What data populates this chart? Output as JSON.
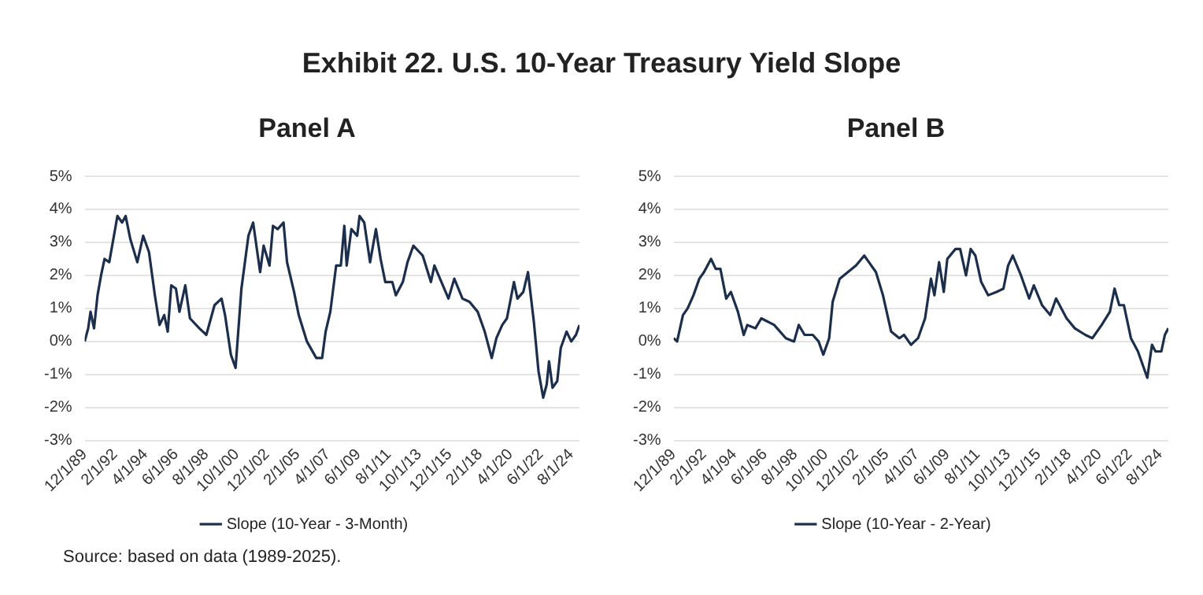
{
  "chart_data": [
    {
      "type": "line",
      "title": "Exhibit 22. U.S. 10-Year Treasury Yield Slope",
      "subtitle": "Panel A",
      "legend": "bottom",
      "grid": "y",
      "marker": "none",
      "line_style": "solid",
      "xlim": [
        "1989-12",
        "2025-03"
      ],
      "xticks": [
        {
          "value": "1989-12",
          "label": "12/1/89"
        },
        {
          "value": "1992-02",
          "label": "2/1/92"
        },
        {
          "value": "1994-04",
          "label": "4/1/94"
        },
        {
          "value": "1996-06",
          "label": "6/1/96"
        },
        {
          "value": "1998-08",
          "label": "8/1/98"
        },
        {
          "value": "2000-10",
          "label": "10/1/00"
        },
        {
          "value": "2002-12",
          "label": "12/1/02"
        },
        {
          "value": "2005-02",
          "label": "2/1/05"
        },
        {
          "value": "2007-04",
          "label": "4/1/07"
        },
        {
          "value": "2009-06",
          "label": "6/1/09"
        },
        {
          "value": "2011-08",
          "label": "8/1/11"
        },
        {
          "value": "2013-10",
          "label": "10/1/13"
        },
        {
          "value": "2015-12",
          "label": "12/1/15"
        },
        {
          "value": "2018-02",
          "label": "2/1/18"
        },
        {
          "value": "2020-04",
          "label": "4/1/20"
        },
        {
          "value": "2022-06",
          "label": "6/1/22"
        },
        {
          "value": "2024-08",
          "label": "8/1/24"
        }
      ],
      "ylim": [
        -3,
        5
      ],
      "yticks": [
        {
          "value": -3,
          "label": "-3%"
        },
        {
          "value": -2,
          "label": "-2%"
        },
        {
          "value": -1,
          "label": "-1%"
        },
        {
          "value": 0,
          "label": "0%"
        },
        {
          "value": 1,
          "label": "1%"
        },
        {
          "value": 2,
          "label": "2%"
        },
        {
          "value": 3,
          "label": "3%"
        },
        {
          "value": 4,
          "label": "4%"
        },
        {
          "value": 5,
          "label": "5%"
        }
      ],
      "annotations": [
        "Source: based on data (1989-2025)."
      ],
      "series": [
        {
          "name": "Slope (10-Year - 3-Month)",
          "color": "#1b2e4b",
          "x": [
            "1989-12",
            "1990-03",
            "1990-05",
            "1990-08",
            "1990-11",
            "1991-02",
            "1991-05",
            "1991-09",
            "1992-02",
            "1992-04",
            "1992-08",
            "1992-11",
            "1993-03",
            "1993-09",
            "1994-02",
            "1994-07",
            "1994-12",
            "1995-04",
            "1995-08",
            "1995-11",
            "1996-02",
            "1996-06",
            "1996-09",
            "1997-02",
            "1997-06",
            "1998-02",
            "1998-08",
            "1999-03",
            "1999-09",
            "1999-12",
            "2000-05",
            "2000-09",
            "2001-02",
            "2001-08",
            "2001-12",
            "2002-06",
            "2002-09",
            "2003-02",
            "2003-05",
            "2003-09",
            "2004-02",
            "2004-05",
            "2004-11",
            "2005-03",
            "2005-10",
            "2006-06",
            "2006-11",
            "2007-02",
            "2007-06",
            "2007-11",
            "2008-03",
            "2008-06",
            "2008-08",
            "2008-12",
            "2009-05",
            "2009-07",
            "2009-11",
            "2010-04",
            "2010-09",
            "2011-01",
            "2011-05",
            "2011-11",
            "2012-02",
            "2012-08",
            "2012-12",
            "2013-05",
            "2014-01",
            "2014-08",
            "2014-11",
            "2015-05",
            "2015-11",
            "2016-04",
            "2016-11",
            "2017-05",
            "2017-12",
            "2018-06",
            "2018-12",
            "2019-04",
            "2019-09",
            "2020-01",
            "2020-07",
            "2020-10",
            "2021-03",
            "2021-07",
            "2021-12",
            "2022-04",
            "2022-08",
            "2022-11",
            "2023-01",
            "2023-04",
            "2023-08",
            "2023-11",
            "2024-04",
            "2024-08",
            "2024-12",
            "2025-03"
          ],
          "values": [
            0.0,
            0.4,
            0.9,
            0.4,
            1.4,
            2.0,
            2.5,
            2.4,
            3.4,
            3.8,
            3.6,
            3.8,
            3.1,
            2.4,
            3.2,
            2.7,
            1.4,
            0.5,
            0.8,
            0.3,
            1.7,
            1.6,
            0.9,
            1.7,
            0.7,
            0.4,
            0.2,
            1.1,
            1.3,
            0.8,
            -0.4,
            -0.8,
            1.6,
            3.2,
            3.6,
            2.1,
            2.9,
            2.3,
            3.5,
            3.4,
            3.6,
            2.4,
            1.5,
            0.8,
            0.0,
            -0.5,
            -0.5,
            0.3,
            0.9,
            2.3,
            2.3,
            3.5,
            2.3,
            3.4,
            3.2,
            3.8,
            3.6,
            2.4,
            3.4,
            2.5,
            1.8,
            1.8,
            1.4,
            1.8,
            2.4,
            2.9,
            2.6,
            1.8,
            2.3,
            1.8,
            1.3,
            1.9,
            1.3,
            1.2,
            0.9,
            0.3,
            -0.5,
            0.1,
            0.5,
            0.7,
            1.8,
            1.3,
            1.5,
            2.1,
            0.6,
            -0.9,
            -1.7,
            -1.3,
            -0.6,
            -1.4,
            -1.2,
            -0.2,
            0.3,
            0.0,
            0.2,
            0.5
          ]
        }
      ]
    },
    {
      "type": "line",
      "subtitle": "Panel B",
      "legend": "bottom",
      "grid": "y",
      "marker": "none",
      "line_style": "solid",
      "xlim": [
        "1989-12",
        "2025-03"
      ],
      "xticks": [
        {
          "value": "1989-12",
          "label": "12/1/89"
        },
        {
          "value": "1992-02",
          "label": "2/1/92"
        },
        {
          "value": "1994-04",
          "label": "4/1/94"
        },
        {
          "value": "1996-06",
          "label": "6/1/96"
        },
        {
          "value": "1998-08",
          "label": "8/1/98"
        },
        {
          "value": "2000-10",
          "label": "10/1/00"
        },
        {
          "value": "2002-12",
          "label": "12/1/02"
        },
        {
          "value": "2005-02",
          "label": "2/1/05"
        },
        {
          "value": "2007-04",
          "label": "4/1/07"
        },
        {
          "value": "2009-06",
          "label": "6/1/09"
        },
        {
          "value": "2011-08",
          "label": "8/1/11"
        },
        {
          "value": "2013-10",
          "label": "10/1/13"
        },
        {
          "value": "2015-12",
          "label": "12/1/15"
        },
        {
          "value": "2018-02",
          "label": "2/1/18"
        },
        {
          "value": "2020-04",
          "label": "4/1/20"
        },
        {
          "value": "2022-06",
          "label": "6/1/22"
        },
        {
          "value": "2024-08",
          "label": "8/1/24"
        }
      ],
      "ylim": [
        -3,
        5
      ],
      "yticks": [
        {
          "value": -3,
          "label": "-3%"
        },
        {
          "value": -2,
          "label": "-2%"
        },
        {
          "value": -1,
          "label": "-1%"
        },
        {
          "value": 0,
          "label": "0%"
        },
        {
          "value": 1,
          "label": "1%"
        },
        {
          "value": 2,
          "label": "2%"
        },
        {
          "value": 3,
          "label": "3%"
        },
        {
          "value": 4,
          "label": "4%"
        },
        {
          "value": 5,
          "label": "5%"
        }
      ],
      "series": [
        {
          "name": "Slope (10-Year - 2-Year)",
          "color": "#1b2e4b",
          "x": [
            "1989-12",
            "1990-03",
            "1990-08",
            "1990-12",
            "1991-05",
            "1991-10",
            "1992-02",
            "1992-08",
            "1992-12",
            "1993-04",
            "1993-09",
            "1994-01",
            "1994-07",
            "1994-12",
            "1995-03",
            "1995-10",
            "1996-03",
            "1997-02",
            "1997-12",
            "1998-07",
            "1998-11",
            "1999-04",
            "1999-11",
            "2000-04",
            "2000-08",
            "2001-01",
            "2001-04",
            "2001-10",
            "2002-05",
            "2002-12",
            "2003-07",
            "2003-11",
            "2004-05",
            "2004-11",
            "2005-06",
            "2006-01",
            "2006-05",
            "2006-11",
            "2007-05",
            "2007-11",
            "2008-04",
            "2008-07",
            "2008-11",
            "2009-03",
            "2009-06",
            "2010-01",
            "2010-05",
            "2010-10",
            "2011-02",
            "2011-06",
            "2011-11",
            "2012-05",
            "2012-12",
            "2013-06",
            "2013-10",
            "2014-02",
            "2014-09",
            "2015-04",
            "2015-08",
            "2016-03",
            "2016-10",
            "2017-03",
            "2017-12",
            "2018-07",
            "2019-04",
            "2019-10",
            "2020-06",
            "2021-01",
            "2021-05",
            "2021-09",
            "2022-01",
            "2022-07",
            "2023-01",
            "2023-06",
            "2023-09",
            "2024-01",
            "2024-04",
            "2024-09",
            "2024-12",
            "2025-03"
          ],
          "values": [
            0.1,
            0.0,
            0.8,
            1.0,
            1.4,
            1.9,
            2.1,
            2.5,
            2.2,
            2.2,
            1.3,
            1.5,
            0.9,
            0.2,
            0.5,
            0.4,
            0.7,
            0.5,
            0.1,
            0.0,
            0.5,
            0.2,
            0.2,
            0.0,
            -0.4,
            0.1,
            1.2,
            1.9,
            2.1,
            2.3,
            2.6,
            2.4,
            2.1,
            1.4,
            0.3,
            0.1,
            0.2,
            -0.1,
            0.1,
            0.7,
            1.9,
            1.4,
            2.4,
            1.5,
            2.5,
            2.8,
            2.8,
            2.0,
            2.8,
            2.6,
            1.8,
            1.4,
            1.5,
            1.6,
            2.3,
            2.6,
            2.0,
            1.3,
            1.7,
            1.1,
            0.8,
            1.3,
            0.7,
            0.4,
            0.2,
            0.1,
            0.5,
            0.9,
            1.6,
            1.1,
            1.1,
            0.1,
            -0.3,
            -0.8,
            -1.1,
            -0.1,
            -0.3,
            -0.3,
            0.2,
            0.4
          ]
        }
      ]
    }
  ]
}
